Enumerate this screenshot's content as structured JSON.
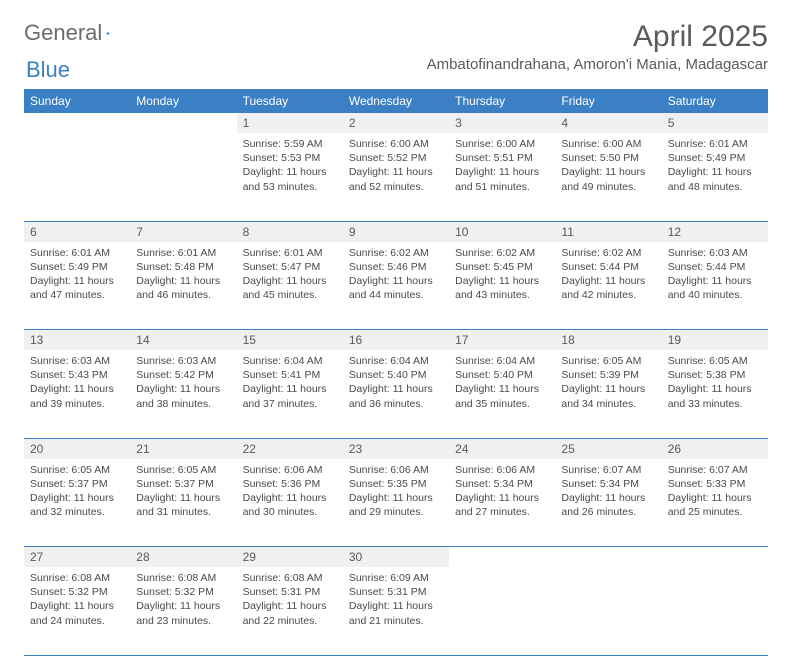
{
  "logo": {
    "text1": "General",
    "text2": "Blue"
  },
  "title": "April 2025",
  "location": "Ambatofinandrahana, Amoron'i Mania, Madagascar",
  "weekdays": [
    "Sunday",
    "Monday",
    "Tuesday",
    "Wednesday",
    "Thursday",
    "Friday",
    "Saturday"
  ],
  "colors": {
    "header_bg": "#3b7fc4",
    "header_text": "#ffffff",
    "daynum_bg": "#eef0f1",
    "border": "#3b7fc4",
    "body_text": "#4a4a4a",
    "title_text": "#5a5a5a"
  },
  "weeks": [
    {
      "nums": [
        "",
        "",
        "1",
        "2",
        "3",
        "4",
        "5"
      ],
      "cells": [
        null,
        null,
        {
          "sunrise": "Sunrise: 5:59 AM",
          "sunset": "Sunset: 5:53 PM",
          "day": "Daylight: 11 hours and 53 minutes."
        },
        {
          "sunrise": "Sunrise: 6:00 AM",
          "sunset": "Sunset: 5:52 PM",
          "day": "Daylight: 11 hours and 52 minutes."
        },
        {
          "sunrise": "Sunrise: 6:00 AM",
          "sunset": "Sunset: 5:51 PM",
          "day": "Daylight: 11 hours and 51 minutes."
        },
        {
          "sunrise": "Sunrise: 6:00 AM",
          "sunset": "Sunset: 5:50 PM",
          "day": "Daylight: 11 hours and 49 minutes."
        },
        {
          "sunrise": "Sunrise: 6:01 AM",
          "sunset": "Sunset: 5:49 PM",
          "day": "Daylight: 11 hours and 48 minutes."
        }
      ]
    },
    {
      "nums": [
        "6",
        "7",
        "8",
        "9",
        "10",
        "11",
        "12"
      ],
      "cells": [
        {
          "sunrise": "Sunrise: 6:01 AM",
          "sunset": "Sunset: 5:49 PM",
          "day": "Daylight: 11 hours and 47 minutes."
        },
        {
          "sunrise": "Sunrise: 6:01 AM",
          "sunset": "Sunset: 5:48 PM",
          "day": "Daylight: 11 hours and 46 minutes."
        },
        {
          "sunrise": "Sunrise: 6:01 AM",
          "sunset": "Sunset: 5:47 PM",
          "day": "Daylight: 11 hours and 45 minutes."
        },
        {
          "sunrise": "Sunrise: 6:02 AM",
          "sunset": "Sunset: 5:46 PM",
          "day": "Daylight: 11 hours and 44 minutes."
        },
        {
          "sunrise": "Sunrise: 6:02 AM",
          "sunset": "Sunset: 5:45 PM",
          "day": "Daylight: 11 hours and 43 minutes."
        },
        {
          "sunrise": "Sunrise: 6:02 AM",
          "sunset": "Sunset: 5:44 PM",
          "day": "Daylight: 11 hours and 42 minutes."
        },
        {
          "sunrise": "Sunrise: 6:03 AM",
          "sunset": "Sunset: 5:44 PM",
          "day": "Daylight: 11 hours and 40 minutes."
        }
      ]
    },
    {
      "nums": [
        "13",
        "14",
        "15",
        "16",
        "17",
        "18",
        "19"
      ],
      "cells": [
        {
          "sunrise": "Sunrise: 6:03 AM",
          "sunset": "Sunset: 5:43 PM",
          "day": "Daylight: 11 hours and 39 minutes."
        },
        {
          "sunrise": "Sunrise: 6:03 AM",
          "sunset": "Sunset: 5:42 PM",
          "day": "Daylight: 11 hours and 38 minutes."
        },
        {
          "sunrise": "Sunrise: 6:04 AM",
          "sunset": "Sunset: 5:41 PM",
          "day": "Daylight: 11 hours and 37 minutes."
        },
        {
          "sunrise": "Sunrise: 6:04 AM",
          "sunset": "Sunset: 5:40 PM",
          "day": "Daylight: 11 hours and 36 minutes."
        },
        {
          "sunrise": "Sunrise: 6:04 AM",
          "sunset": "Sunset: 5:40 PM",
          "day": "Daylight: 11 hours and 35 minutes."
        },
        {
          "sunrise": "Sunrise: 6:05 AM",
          "sunset": "Sunset: 5:39 PM",
          "day": "Daylight: 11 hours and 34 minutes."
        },
        {
          "sunrise": "Sunrise: 6:05 AM",
          "sunset": "Sunset: 5:38 PM",
          "day": "Daylight: 11 hours and 33 minutes."
        }
      ]
    },
    {
      "nums": [
        "20",
        "21",
        "22",
        "23",
        "24",
        "25",
        "26"
      ],
      "cells": [
        {
          "sunrise": "Sunrise: 6:05 AM",
          "sunset": "Sunset: 5:37 PM",
          "day": "Daylight: 11 hours and 32 minutes."
        },
        {
          "sunrise": "Sunrise: 6:05 AM",
          "sunset": "Sunset: 5:37 PM",
          "day": "Daylight: 11 hours and 31 minutes."
        },
        {
          "sunrise": "Sunrise: 6:06 AM",
          "sunset": "Sunset: 5:36 PM",
          "day": "Daylight: 11 hours and 30 minutes."
        },
        {
          "sunrise": "Sunrise: 6:06 AM",
          "sunset": "Sunset: 5:35 PM",
          "day": "Daylight: 11 hours and 29 minutes."
        },
        {
          "sunrise": "Sunrise: 6:06 AM",
          "sunset": "Sunset: 5:34 PM",
          "day": "Daylight: 11 hours and 27 minutes."
        },
        {
          "sunrise": "Sunrise: 6:07 AM",
          "sunset": "Sunset: 5:34 PM",
          "day": "Daylight: 11 hours and 26 minutes."
        },
        {
          "sunrise": "Sunrise: 6:07 AM",
          "sunset": "Sunset: 5:33 PM",
          "day": "Daylight: 11 hours and 25 minutes."
        }
      ]
    },
    {
      "nums": [
        "27",
        "28",
        "29",
        "30",
        "",
        "",
        ""
      ],
      "cells": [
        {
          "sunrise": "Sunrise: 6:08 AM",
          "sunset": "Sunset: 5:32 PM",
          "day": "Daylight: 11 hours and 24 minutes."
        },
        {
          "sunrise": "Sunrise: 6:08 AM",
          "sunset": "Sunset: 5:32 PM",
          "day": "Daylight: 11 hours and 23 minutes."
        },
        {
          "sunrise": "Sunrise: 6:08 AM",
          "sunset": "Sunset: 5:31 PM",
          "day": "Daylight: 11 hours and 22 minutes."
        },
        {
          "sunrise": "Sunrise: 6:09 AM",
          "sunset": "Sunset: 5:31 PM",
          "day": "Daylight: 11 hours and 21 minutes."
        },
        null,
        null,
        null
      ]
    }
  ]
}
